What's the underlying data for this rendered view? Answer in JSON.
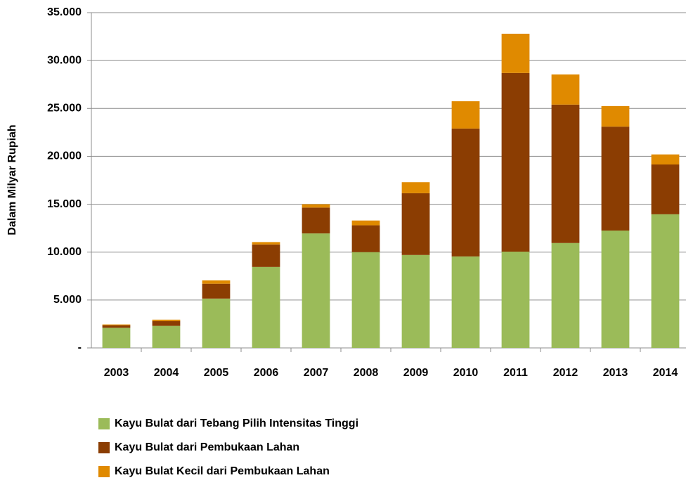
{
  "chart_data": {
    "type": "bar",
    "stacked": true,
    "ylabel": "Dalam Milyar Rupiah",
    "categories": [
      "2003",
      "2004",
      "2005",
      "2006",
      "2007",
      "2008",
      "2009",
      "2010",
      "2011",
      "2012",
      "2013",
      "2014"
    ],
    "series": [
      {
        "name": "Kayu Bulat dari Tebang Pilih Intensitas Tinggi",
        "color": "#9bbb59",
        "values": [
          2100,
          2300,
          5150,
          8450,
          11950,
          10000,
          9700,
          9550,
          10050,
          10950,
          12250,
          13950
        ]
      },
      {
        "name": "Kayu Bulat dari Pembukaan Lahan",
        "color": "#8b3d02",
        "values": [
          250,
          500,
          1550,
          2350,
          2700,
          2800,
          6450,
          13350,
          18650,
          14450,
          10850,
          5200
        ]
      },
      {
        "name": "Kayu Bulat Kecil dari Pembukaan Lahan",
        "color": "#e08a00",
        "values": [
          100,
          150,
          350,
          250,
          350,
          500,
          1150,
          2850,
          4100,
          3150,
          2150,
          1050
        ]
      }
    ],
    "ylim": [
      0,
      35000
    ],
    "yticks": [
      {
        "value": 0,
        "label": "-"
      },
      {
        "value": 5000,
        "label": "5.000"
      },
      {
        "value": 10000,
        "label": "10.000"
      },
      {
        "value": 15000,
        "label": "15.000"
      },
      {
        "value": 20000,
        "label": "20.000"
      },
      {
        "value": 25000,
        "label": "25.000"
      },
      {
        "value": 30000,
        "label": "30.000"
      },
      {
        "value": 35000,
        "label": "35.000"
      }
    ],
    "grid": true,
    "legend": "bottom"
  }
}
